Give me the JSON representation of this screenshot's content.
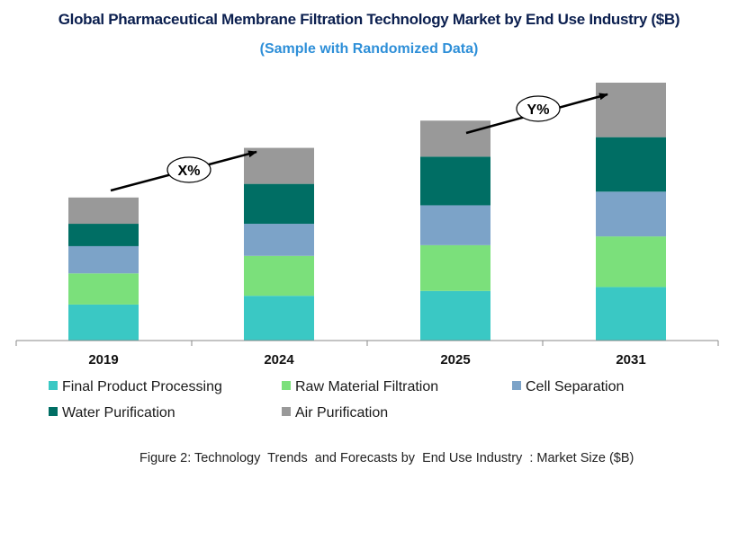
{
  "title": "Global Pharmaceutical Membrane Filtration Technology Market by End Use Industry ($B)",
  "subtitle": "(Sample with Randomized Data)",
  "caption": "Figure 2: Technology  Trends  and Forecasts by  End Use Industry  : Market Size ($B)",
  "colors": {
    "final_product_processing": "#3ac8c4",
    "raw_material_filtration": "#7be07b",
    "cell_separation": "#7ca3c8",
    "water_purification": "#006e64",
    "air_purification": "#999999"
  },
  "chart_data": {
    "type": "bar",
    "stacked": true,
    "categories": [
      "2019",
      "2024",
      "2025",
      "2031"
    ],
    "series": [
      {
        "name": "Final Product Processing",
        "color": "#3ac8c4",
        "values": [
          3.7,
          4.6,
          5.1,
          5.5
        ]
      },
      {
        "name": "Raw Material Filtration",
        "color": "#7be07b",
        "values": [
          3.2,
          4.1,
          4.7,
          5.2
        ]
      },
      {
        "name": "Cell Separation",
        "color": "#7ca3c8",
        "values": [
          2.8,
          3.3,
          4.1,
          4.6
        ]
      },
      {
        "name": "Water Purification",
        "color": "#006e64",
        "values": [
          2.3,
          4.1,
          5.0,
          5.6
        ]
      },
      {
        "name": "Air Purification",
        "color": "#999999",
        "values": [
          2.7,
          3.7,
          3.7,
          5.6
        ]
      }
    ],
    "ylim": [
      0,
      26.5
    ],
    "annotations": [
      {
        "label": "X%",
        "from": "2019",
        "to": "2024"
      },
      {
        "label": "Y%",
        "from": "2025",
        "to": "2031"
      }
    ],
    "legend": "bottom",
    "title": "Global Pharmaceutical Membrane Filtration Technology Market by End Use Industry ($B)",
    "xlabel": "",
    "ylabel": ""
  }
}
